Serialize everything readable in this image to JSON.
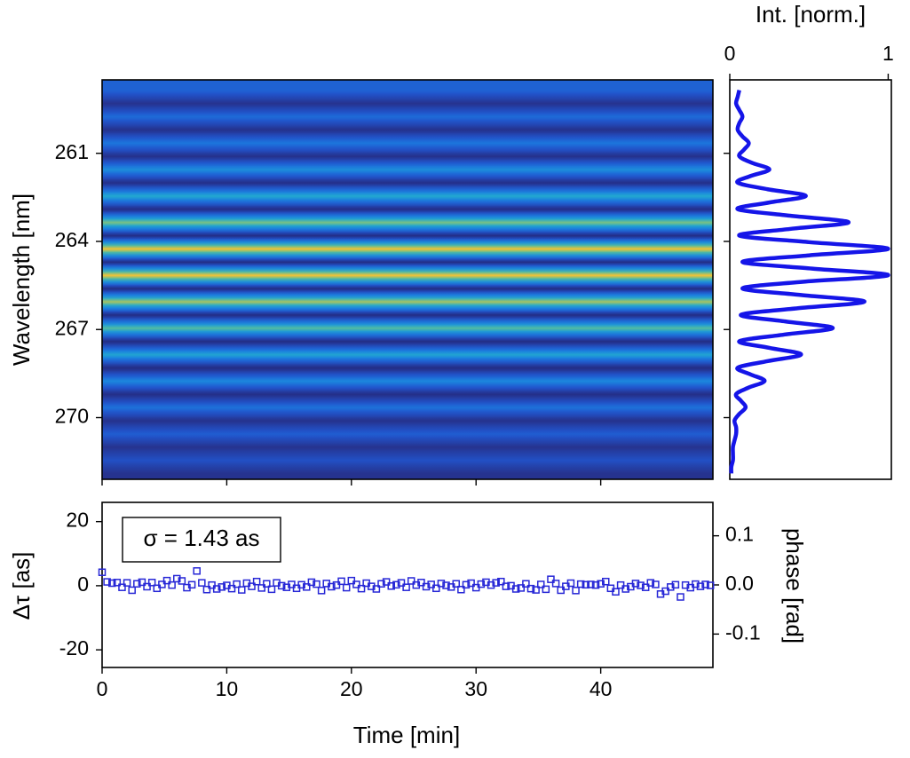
{
  "chart_data": [
    {
      "type": "heatmap",
      "ylabel": "Wavelength [nm]",
      "xlim": [
        0,
        49
      ],
      "ylim": [
        258.5,
        272.1
      ],
      "inverted": true,
      "yticks": [
        261,
        264,
        267,
        270
      ],
      "colorscale": [
        [
          0,
          "#1d2170"
        ],
        [
          0.15,
          "#26338f"
        ],
        [
          0.3,
          "#2154cc"
        ],
        [
          0.45,
          "#1b7fe0"
        ],
        [
          0.6,
          "#22a8cf"
        ],
        [
          0.72,
          "#5cbf98"
        ],
        [
          0.82,
          "#b8c455"
        ],
        [
          0.9,
          "#f2c234"
        ],
        [
          1,
          "#f7dc24"
        ]
      ],
      "y": [
        258.85,
        259.075,
        259.3,
        259.525,
        259.75,
        259.975,
        260.2,
        260.425,
        260.65,
        260.875,
        261.1,
        261.325,
        261.55,
        261.775,
        262.0,
        262.225,
        262.45,
        262.675,
        262.9,
        263.125,
        263.35,
        263.575,
        263.8,
        264.025,
        264.25,
        264.475,
        264.7,
        264.925,
        265.15,
        265.375,
        265.6,
        265.825,
        266.05,
        266.275,
        266.5,
        266.725,
        266.95,
        267.175,
        267.4,
        267.625,
        267.85,
        268.075,
        268.3,
        268.525,
        268.75,
        268.975,
        269.2,
        269.425,
        269.65,
        269.875,
        270.1,
        270.325,
        270.55,
        270.775,
        271.0,
        271.225,
        271.45,
        271.675,
        271.9
      ],
      "values": [
        0.35,
        0.25,
        0.15,
        0.26,
        0.38,
        0.26,
        0.14,
        0.28,
        0.42,
        0.28,
        0.13,
        0.32,
        0.5,
        0.31,
        0.12,
        0.36,
        0.6,
        0.36,
        0.11,
        0.43,
        0.75,
        0.43,
        0.1,
        0.5,
        0.9,
        0.5,
        0.1,
        0.5,
        0.9,
        0.5,
        0.1,
        0.45,
        0.8,
        0.45,
        0.1,
        0.4,
        0.7,
        0.4,
        0.1,
        0.34,
        0.58,
        0.34,
        0.1,
        0.29,
        0.48,
        0.3,
        0.12,
        0.26,
        0.4,
        0.27,
        0.14,
        0.24,
        0.33,
        0.24,
        0.15,
        0.22,
        0.28,
        0.21,
        0.15
      ]
    },
    {
      "type": "line",
      "xlabel": "Int. [norm.]",
      "color": "#1515e8",
      "xlim": [
        0,
        1.02
      ],
      "xticks": [
        0,
        1
      ],
      "ylim": [
        258.5,
        272.1
      ],
      "inverted": true,
      "y": [
        258.85,
        259.075,
        259.3,
        259.525,
        259.75,
        259.975,
        260.2,
        260.425,
        260.65,
        260.875,
        261.1,
        261.325,
        261.55,
        261.775,
        262.0,
        262.225,
        262.45,
        262.675,
        262.9,
        263.125,
        263.35,
        263.575,
        263.8,
        264.025,
        264.25,
        264.475,
        264.7,
        264.925,
        265.15,
        265.375,
        265.6,
        265.825,
        266.05,
        266.275,
        266.5,
        266.725,
        266.95,
        267.175,
        267.4,
        267.625,
        267.85,
        268.075,
        268.3,
        268.525,
        268.75,
        268.975,
        269.2,
        269.425,
        269.65,
        269.875,
        270.1,
        270.325,
        270.55,
        270.775,
        271.0,
        271.225,
        271.45,
        271.675,
        271.9
      ],
      "values": [
        0.06,
        0.05,
        0.04,
        0.06,
        0.08,
        0.06,
        0.05,
        0.08,
        0.12,
        0.09,
        0.06,
        0.14,
        0.25,
        0.13,
        0.05,
        0.24,
        0.48,
        0.25,
        0.05,
        0.38,
        0.75,
        0.38,
        0.06,
        0.5,
        1.0,
        0.5,
        0.08,
        0.52,
        1.0,
        0.46,
        0.08,
        0.45,
        0.85,
        0.43,
        0.07,
        0.35,
        0.65,
        0.34,
        0.06,
        0.25,
        0.45,
        0.24,
        0.05,
        0.13,
        0.22,
        0.12,
        0.04,
        0.07,
        0.1,
        0.06,
        0.03,
        0.04,
        0.04,
        0.03,
        0.02,
        0.02,
        0.02,
        0.01,
        0.01
      ]
    },
    {
      "type": "scatter",
      "xlabel": "Time [min]",
      "ylabel": "Δτ [as]",
      "y2label": "phase [rad]",
      "annotation": "σ = 1.43 as",
      "color": "#2727d6",
      "xlim": [
        0,
        49
      ],
      "xticks": [
        0,
        10,
        20,
        30,
        40
      ],
      "ylim": [
        -25.5,
        26
      ],
      "yticks": [
        20,
        0,
        -20
      ],
      "y2lim": [
        -0.168,
        0.168
      ],
      "y2ticks": [
        0.1,
        {
          "value": 0,
          "label": "0.0"
        },
        -0.1
      ],
      "x": [
        0,
        0.4,
        0.8,
        1.2,
        1.6,
        2.0,
        2.4,
        2.8,
        3.2,
        3.6,
        4.0,
        4.4,
        4.8,
        5.2,
        5.6,
        6.0,
        6.4,
        6.8,
        7.2,
        7.6,
        8.0,
        8.4,
        8.8,
        9.2,
        9.6,
        10.0,
        10.4,
        10.8,
        11.2,
        11.6,
        12.0,
        12.4,
        12.8,
        13.2,
        13.6,
        14.0,
        14.4,
        14.8,
        15.2,
        15.6,
        16.0,
        16.4,
        16.8,
        17.2,
        17.6,
        18.0,
        18.4,
        18.8,
        19.2,
        19.6,
        20.0,
        20.4,
        20.8,
        21.2,
        21.6,
        22.0,
        22.4,
        22.8,
        23.2,
        23.6,
        24.0,
        24.4,
        24.8,
        25.2,
        25.6,
        26.0,
        26.4,
        26.8,
        27.2,
        27.6,
        28.0,
        28.4,
        28.8,
        29.2,
        29.6,
        30.0,
        30.4,
        30.8,
        31.2,
        31.6,
        32.0,
        32.4,
        32.8,
        33.2,
        33.6,
        34.0,
        34.4,
        34.8,
        35.2,
        35.6,
        36.0,
        36.4,
        36.8,
        37.2,
        37.6,
        38.0,
        38.4,
        38.8,
        39.2,
        39.6,
        40.0,
        40.4,
        40.8,
        41.2,
        41.6,
        42.0,
        42.4,
        42.8,
        43.2,
        43.6,
        44.0,
        44.4,
        44.8,
        45.2,
        45.6,
        46.0,
        46.4,
        46.8,
        47.2,
        47.6,
        48.0,
        48.4,
        48.8
      ],
      "values": [
        4.2,
        1.2,
        0.8,
        1.0,
        -0.5,
        0.9,
        -1.4,
        0.6,
        1.1,
        -0.3,
        1.0,
        -0.8,
        0.4,
        1.6,
        0.2,
        2.2,
        1.5,
        -0.6,
        0.3,
        4.6,
        0.9,
        -1.2,
        0.2,
        -1.0,
        -0.4,
        0.1,
        -0.9,
        0.5,
        -1.3,
        0.8,
        -0.2,
        1.3,
        -0.7,
        0.6,
        -1.1,
        0.9,
        0.0,
        -0.5,
        0.4,
        -0.8,
        0.3,
        -0.4,
        1.1,
        0.5,
        -1.5,
        0.7,
        -0.3,
        0.2,
        1.4,
        -0.6,
        1.6,
        0.4,
        -0.9,
        0.8,
        -0.2,
        -1.0,
        0.6,
        1.2,
        -0.1,
        0.3,
        0.9,
        -0.5,
        1.5,
        0.2,
        1.0,
        -0.3,
        0.4,
        -0.8,
        0.7,
        0.1,
        -0.4,
        0.6,
        -1.2,
        0.3,
        0.8,
        -0.6,
        0.5,
        1.1,
        0.2,
        0.9,
        1.3,
        -0.2,
        0.0,
        -1.0,
        -0.7,
        0.6,
        -0.9,
        -1.3,
        0.4,
        -1.1,
        2.0,
        0.7,
        -1.4,
        -0.2,
        0.8,
        -1.5,
        0.5,
        0.3,
        0.4,
        0.2,
        0.6,
        1.3,
        -0.8,
        -1.9,
        0.2,
        -1.0,
        -0.3,
        0.7,
        0.1,
        -0.5,
        0.9,
        0.4,
        -2.6,
        -1.7,
        -0.4,
        0.3,
        -3.5,
        0.2,
        -0.6,
        0.5,
        -0.2,
        0.4,
        0.1
      ]
    }
  ]
}
